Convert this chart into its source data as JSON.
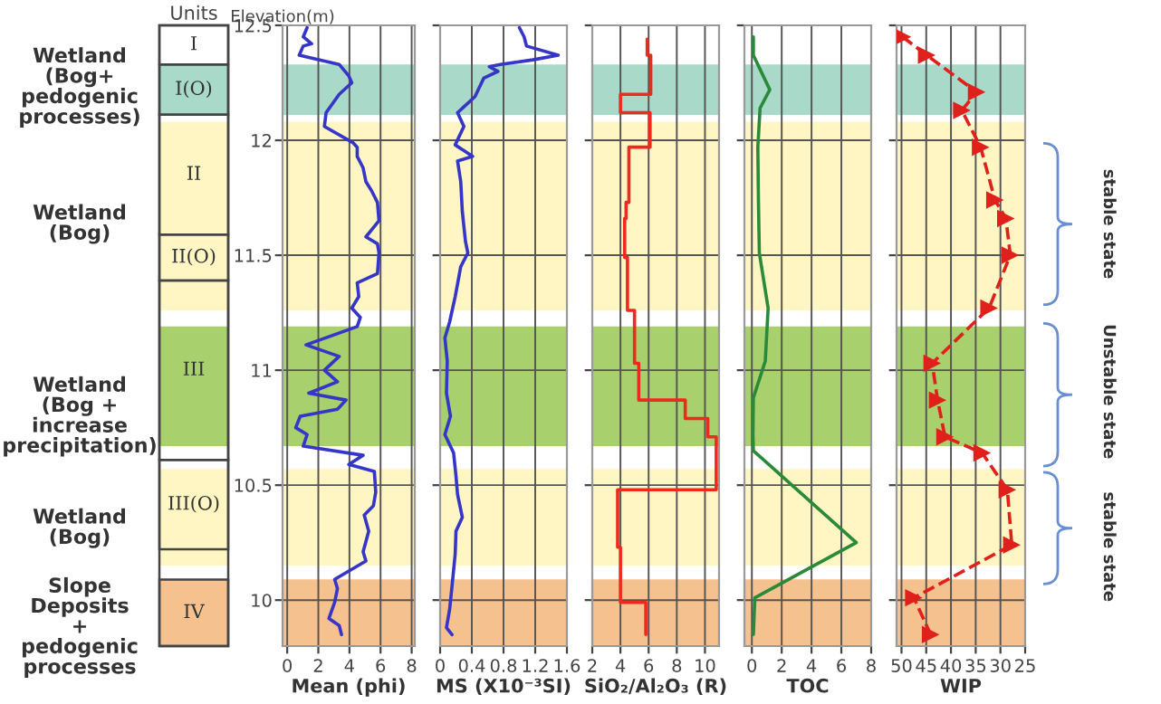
{
  "chart_data": [
    {
      "type": "line",
      "xlabel": "Mean (phi)",
      "ylabel": "Elevation(m)",
      "legend_title": "Units",
      "xlim": [
        -0.3,
        8.2
      ],
      "xticks": [
        0,
        2,
        4,
        6,
        8
      ],
      "ylim": [
        9.8,
        12.5
      ],
      "yticks": [
        10,
        10.5,
        11,
        11.5,
        12,
        12.5
      ],
      "grid": true,
      "annotations": [
        "Wetland\n(Bog+\npedogenic\nprocesses)",
        "Wetland\n(Bog)",
        "Wetland\n(Bog +\nincrease\nprecipitation)",
        "Wetland\n(Bog)",
        "Slope\nDeposits\n+\npedogenic\nprocesses",
        "I",
        "I(O)",
        "II",
        "II(O)",
        "III",
        "III(O)",
        "IV"
      ],
      "bands": [
        {
          "axis": "y",
          "from": 12.11,
          "to": 12.33,
          "color": "#a9d9c9"
        },
        {
          "axis": "y",
          "from": 11.26,
          "to": 12.08,
          "color": "#fff6c4"
        },
        {
          "axis": "y",
          "from": 10.67,
          "to": 11.19,
          "color": "#a8d06c"
        },
        {
          "axis": "y",
          "from": 10.15,
          "to": 10.57,
          "color": "#fff6c4"
        },
        {
          "axis": "y",
          "from": 9.8,
          "to": 10.09,
          "color": "#f5c18f"
        }
      ],
      "series": [
        {
          "color": "#3535c8",
          "x": [
            1.28,
            1.03,
            1.57,
            1.03,
            0.77,
            3.34,
            3.96,
            4.15,
            3.34,
            2.5,
            2.39,
            4.22,
            4.5,
            4.5,
            4.88,
            5.06,
            5.43,
            5.8,
            5.9,
            5.06,
            5.8,
            5.9,
            5.8,
            4.5,
            4.6,
            4.15,
            4.7,
            4.5,
            1.21,
            3.34,
            2.39,
            3.23,
            1.39,
            3.78,
            3.23,
            0.84,
            0.55,
            1.28,
            1.03,
            4.88,
            3.96,
            5.6,
            5.69,
            5.54,
            4.95,
            5.24,
            4.88,
            5.06,
            3.05,
            3.23,
            3.05,
            2.68,
            3.34,
            3.49
          ],
          "values": [
            12.49,
            12.45,
            12.42,
            12.41,
            12.37,
            12.33,
            12.28,
            12.25,
            12.2,
            12.12,
            12.06,
            11.99,
            11.97,
            11.93,
            11.88,
            11.82,
            11.78,
            11.73,
            11.65,
            11.58,
            11.55,
            11.51,
            11.42,
            11.38,
            11.32,
            11.27,
            11.23,
            11.19,
            11.11,
            11.06,
            11.0,
            10.95,
            10.9,
            10.87,
            10.83,
            10.8,
            10.75,
            10.72,
            10.67,
            10.63,
            10.59,
            10.56,
            10.47,
            10.41,
            10.37,
            10.3,
            10.21,
            10.17,
            10.09,
            10.05,
            9.99,
            9.92,
            9.89,
            9.85
          ]
        }
      ]
    },
    {
      "type": "line",
      "xlabel": "MS (X10⁻³SI)",
      "xlim": [
        0,
        1.6
      ],
      "xticks": [
        0,
        0.4,
        0.8,
        1.2,
        1.6
      ],
      "ylim": [
        9.8,
        12.5
      ],
      "yticks": [
        10,
        10.5,
        11,
        11.5,
        12,
        12.5
      ],
      "grid": true,
      "tick_labels": "x",
      "bands": [
        {
          "axis": "y",
          "from": 12.11,
          "to": 12.33,
          "color": "#a9d9c9"
        },
        {
          "axis": "y",
          "from": 11.26,
          "to": 12.08,
          "color": "#fff6c4"
        },
        {
          "axis": "y",
          "from": 10.67,
          "to": 11.19,
          "color": "#a8d06c"
        },
        {
          "axis": "y",
          "from": 10.15,
          "to": 10.57,
          "color": "#fff6c4"
        },
        {
          "axis": "y",
          "from": 9.8,
          "to": 10.09,
          "color": "#f5c18f"
        }
      ],
      "series": [
        {
          "color": "#3535c8",
          "x": [
            1.0,
            1.06,
            1.09,
            1.49,
            1.17,
            0.76,
            0.62,
            0.73,
            0.55,
            0.44,
            0.22,
            0.3,
            0.19,
            0.41,
            0.22,
            0.26,
            0.28,
            0.32,
            0.35,
            0.26,
            0.19,
            0.12,
            0.06,
            0.09,
            0.08,
            0.13,
            0.06,
            0.17,
            0.2,
            0.22,
            0.28,
            0.2,
            0.19,
            0.15,
            0.12,
            0.08,
            0.15
          ],
          "values": [
            12.49,
            12.45,
            12.41,
            12.37,
            12.35,
            12.33,
            12.32,
            12.3,
            12.27,
            12.19,
            12.12,
            12.06,
            11.98,
            11.93,
            11.91,
            11.82,
            11.69,
            11.56,
            11.51,
            11.45,
            11.32,
            11.21,
            11.14,
            11.04,
            10.9,
            10.8,
            10.72,
            10.64,
            10.54,
            10.46,
            10.36,
            10.3,
            10.2,
            10.06,
            9.96,
            9.88,
            9.85
          ]
        }
      ]
    },
    {
      "type": "line",
      "xlabel": "SiO₂/Al₂O₃ (R)",
      "xlim": [
        2,
        11
      ],
      "xticks": [
        2,
        4,
        6,
        8,
        10
      ],
      "ylim": [
        9.8,
        12.5
      ],
      "yticks": [
        10,
        10.5,
        11,
        11.5,
        12,
        12.5
      ],
      "grid": true,
      "tick_labels": "x",
      "bands": [
        {
          "axis": "y",
          "from": 12.11,
          "to": 12.33,
          "color": "#a9d9c9"
        },
        {
          "axis": "y",
          "from": 11.26,
          "to": 12.08,
          "color": "#fff6c4"
        },
        {
          "axis": "y",
          "from": 10.67,
          "to": 11.19,
          "color": "#a8d06c"
        },
        {
          "axis": "y",
          "from": 10.15,
          "to": 10.57,
          "color": "#fff6c4"
        },
        {
          "axis": "y",
          "from": 9.8,
          "to": 10.09,
          "color": "#f5c18f"
        }
      ],
      "series": [
        {
          "color": "#ee2a1e",
          "x": [
            5.9,
            5.9,
            6.15,
            6.15,
            4.0,
            4.0,
            6.1,
            6.1,
            4.6,
            4.6,
            4.4,
            4.4,
            4.3,
            4.3,
            4.5,
            4.5,
            5.0,
            5.0,
            5.3,
            5.3,
            8.6,
            8.6,
            10.2,
            10.2,
            10.8,
            10.8,
            3.8,
            3.8,
            4.0,
            4.0,
            5.8,
            5.8
          ],
          "values": [
            12.44,
            12.37,
            12.37,
            12.2,
            12.2,
            12.12,
            12.12,
            11.97,
            11.97,
            11.73,
            11.73,
            11.66,
            11.66,
            11.49,
            11.49,
            11.26,
            11.26,
            11.03,
            11.03,
            10.87,
            10.87,
            10.79,
            10.79,
            10.71,
            10.71,
            10.48,
            10.48,
            10.23,
            10.23,
            9.99,
            9.99,
            9.85
          ]
        }
      ]
    },
    {
      "type": "line",
      "xlabel": "TOC",
      "xlim": [
        -0.5,
        8
      ],
      "xticks": [
        0,
        2,
        4,
        6,
        8
      ],
      "ylim": [
        9.8,
        12.5
      ],
      "yticks": [
        10,
        10.5,
        11,
        11.5,
        12,
        12.5
      ],
      "grid": true,
      "tick_labels": "x",
      "bands": [
        {
          "axis": "y",
          "from": 12.11,
          "to": 12.33,
          "color": "#a9d9c9"
        },
        {
          "axis": "y",
          "from": 11.26,
          "to": 12.08,
          "color": "#fff6c4"
        },
        {
          "axis": "y",
          "from": 10.67,
          "to": 11.19,
          "color": "#a8d06c"
        },
        {
          "axis": "y",
          "from": 10.15,
          "to": 10.57,
          "color": "#fff6c4"
        },
        {
          "axis": "y",
          "from": 9.8,
          "to": 10.09,
          "color": "#f5c18f"
        }
      ],
      "series": [
        {
          "color": "#2a8a3a",
          "x": [
            0.1,
            0.1,
            1.2,
            0.55,
            0.4,
            0.44,
            0.5,
            1.09,
            0.9,
            0.1,
            0.07,
            0.1,
            7.0,
            0.2,
            0.1
          ],
          "values": [
            12.45,
            12.37,
            12.22,
            12.14,
            11.97,
            11.74,
            11.51,
            11.27,
            11.04,
            10.88,
            10.72,
            10.65,
            10.25,
            10.01,
            9.85
          ]
        }
      ]
    },
    {
      "type": "line",
      "xlabel": "WIP",
      "xlim": [
        51,
        25
      ],
      "xticks": [
        50,
        45,
        40,
        35,
        30,
        25
      ],
      "ylim": [
        9.8,
        12.5
      ],
      "yticks": [
        10,
        10.5,
        11,
        11.5,
        12,
        12.5
      ],
      "grid": true,
      "tick_labels": "x",
      "marker": "triangle",
      "line_style": "dashed",
      "bands": [
        {
          "axis": "y",
          "from": 12.11,
          "to": 12.33,
          "color": "#a9d9c9"
        },
        {
          "axis": "y",
          "from": 11.26,
          "to": 12.08,
          "color": "#fff6c4"
        },
        {
          "axis": "y",
          "from": 10.67,
          "to": 11.19,
          "color": "#a8d06c"
        },
        {
          "axis": "y",
          "from": 10.15,
          "to": 10.57,
          "color": "#fff6c4"
        },
        {
          "axis": "y",
          "from": 9.8,
          "to": 10.09,
          "color": "#f5c18f"
        }
      ],
      "annotations": [
        "stable state",
        "Unstable state",
        "stable state"
      ],
      "series": [
        {
          "color": "#e0201b",
          "x": [
            49.8,
            44.9,
            34.8,
            37.8,
            34.0,
            31.1,
            28.9,
            28.0,
            32.3,
            43.8,
            42.7,
            41.2,
            33.7,
            28.6,
            27.7,
            47.5,
            44.1
          ],
          "values": [
            12.45,
            12.37,
            12.21,
            12.13,
            11.97,
            11.74,
            11.66,
            11.5,
            11.27,
            11.03,
            10.87,
            10.71,
            10.64,
            10.48,
            10.24,
            10.01,
            9.85
          ]
        }
      ]
    }
  ]
}
